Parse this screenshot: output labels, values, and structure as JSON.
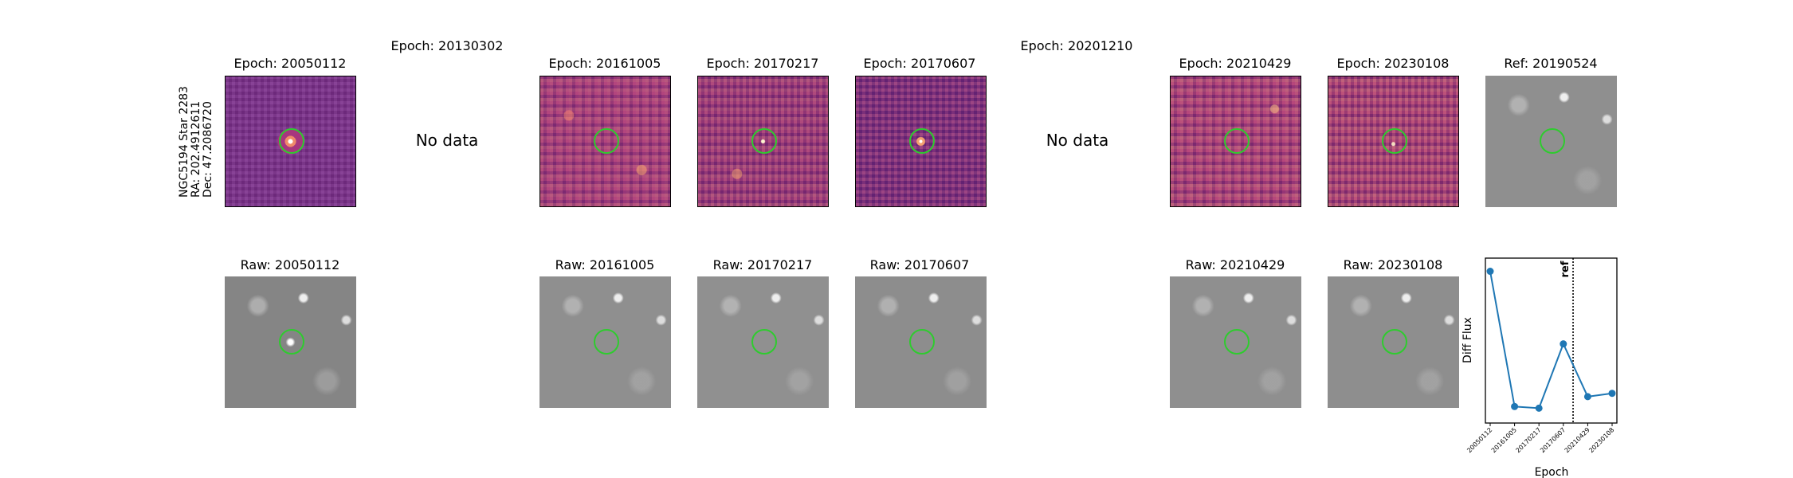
{
  "row_label": {
    "line1": "NGC5194 Star 2283",
    "line2": "RA: 202.4912611",
    "line3": "Dec: 47.2086720"
  },
  "panels": {
    "diff": [
      {
        "title": "Epoch: 20050112",
        "has_data": true
      },
      {
        "title": "Epoch: 20130302",
        "has_data": false,
        "nodata": "No data"
      },
      {
        "title": "Epoch: 20161005",
        "has_data": true
      },
      {
        "title": "Epoch: 20170217",
        "has_data": true
      },
      {
        "title": "Epoch: 20170607",
        "has_data": true
      },
      {
        "title": "Epoch: 20201210",
        "has_data": false,
        "nodata": "No data"
      },
      {
        "title": "Epoch: 20210429",
        "has_data": true
      },
      {
        "title": "Epoch: 20230108",
        "has_data": true
      }
    ],
    "ref": {
      "title": "Ref: 20190524"
    },
    "raw": [
      {
        "title": "Raw: 20050112"
      },
      {
        "title": "Raw: 20161005"
      },
      {
        "title": "Raw: 20170217"
      },
      {
        "title": "Raw: 20170607"
      },
      {
        "title": "Raw: 20210429"
      },
      {
        "title": "Raw: 20230108"
      }
    ]
  },
  "colors": {
    "ring": "#2ecc2e",
    "line": "#1f77b4"
  },
  "chart_data": {
    "type": "line",
    "categories": [
      "20050112",
      "20161005",
      "20170217",
      "20170607",
      "20210429",
      "20230108"
    ],
    "values": [
      0.92,
      0.1,
      0.09,
      0.48,
      0.16,
      0.18
    ],
    "xlabel": "Epoch",
    "ylabel": "Diff Flux",
    "ylim": [
      0,
      1
    ],
    "reference": {
      "label": "ref",
      "position_between": [
        "20170607",
        "20210429"
      ]
    },
    "grid": false
  }
}
